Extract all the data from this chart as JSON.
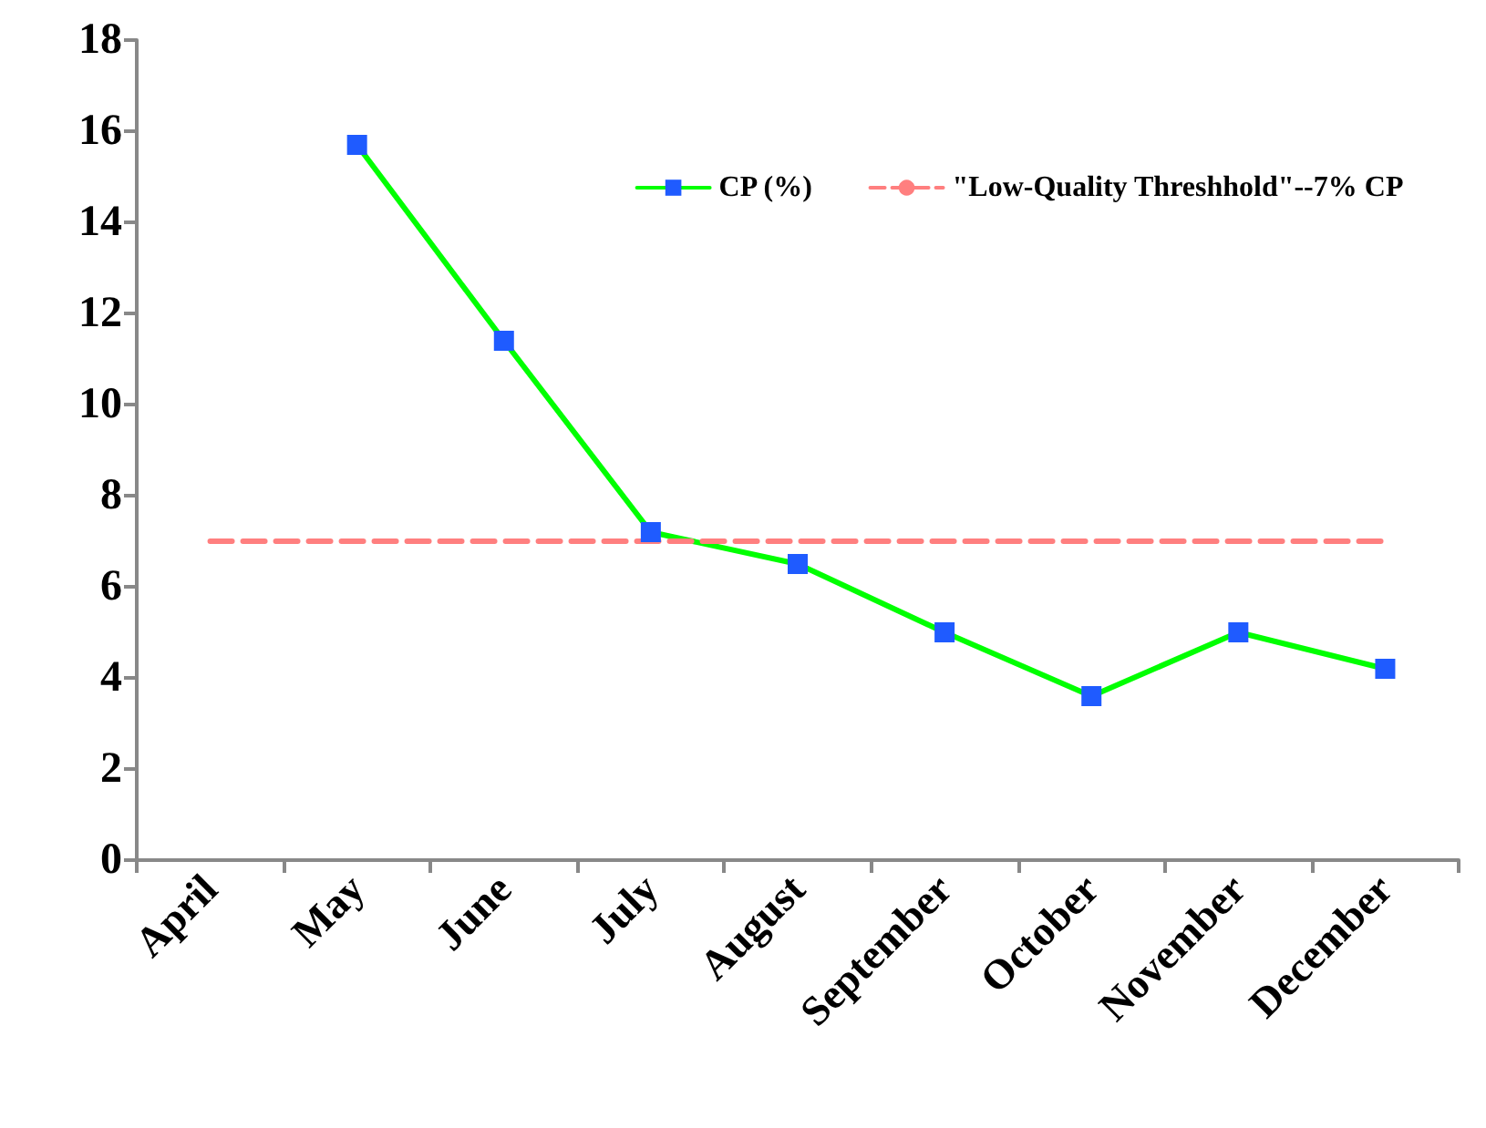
{
  "chart_data": {
    "type": "line",
    "categories": [
      "April",
      "May",
      "June",
      "July",
      "August",
      "September",
      "October",
      "November",
      "December"
    ],
    "series": [
      {
        "name": "CP (%)",
        "color": "#00ff00",
        "values": [
          null,
          15.7,
          11.4,
          7.2,
          6.5,
          5.0,
          3.6,
          5.0,
          4.2
        ],
        "colors": [
          null,
          "#1f5bff",
          "#1f5bff",
          "#1f5bff",
          "#1f5bff",
          "#1f5bff",
          "#1f5bff",
          "#1f5bff",
          "#1f5bff"
        ],
        "marker": "square",
        "line_style": "solid"
      },
      {
        "name": "\"Low-Quality Threshhold\"--7% CP",
        "color": "#ff7f7f",
        "values": [
          7,
          7,
          7,
          7,
          7,
          7,
          7,
          7,
          7
        ],
        "marker": "none",
        "line_style": "dashed"
      }
    ],
    "ylim": [
      0,
      18
    ],
    "yticks": [
      0,
      2,
      4,
      6,
      8,
      10,
      12,
      14,
      16,
      18
    ],
    "grid": false,
    "legend": "top right"
  }
}
